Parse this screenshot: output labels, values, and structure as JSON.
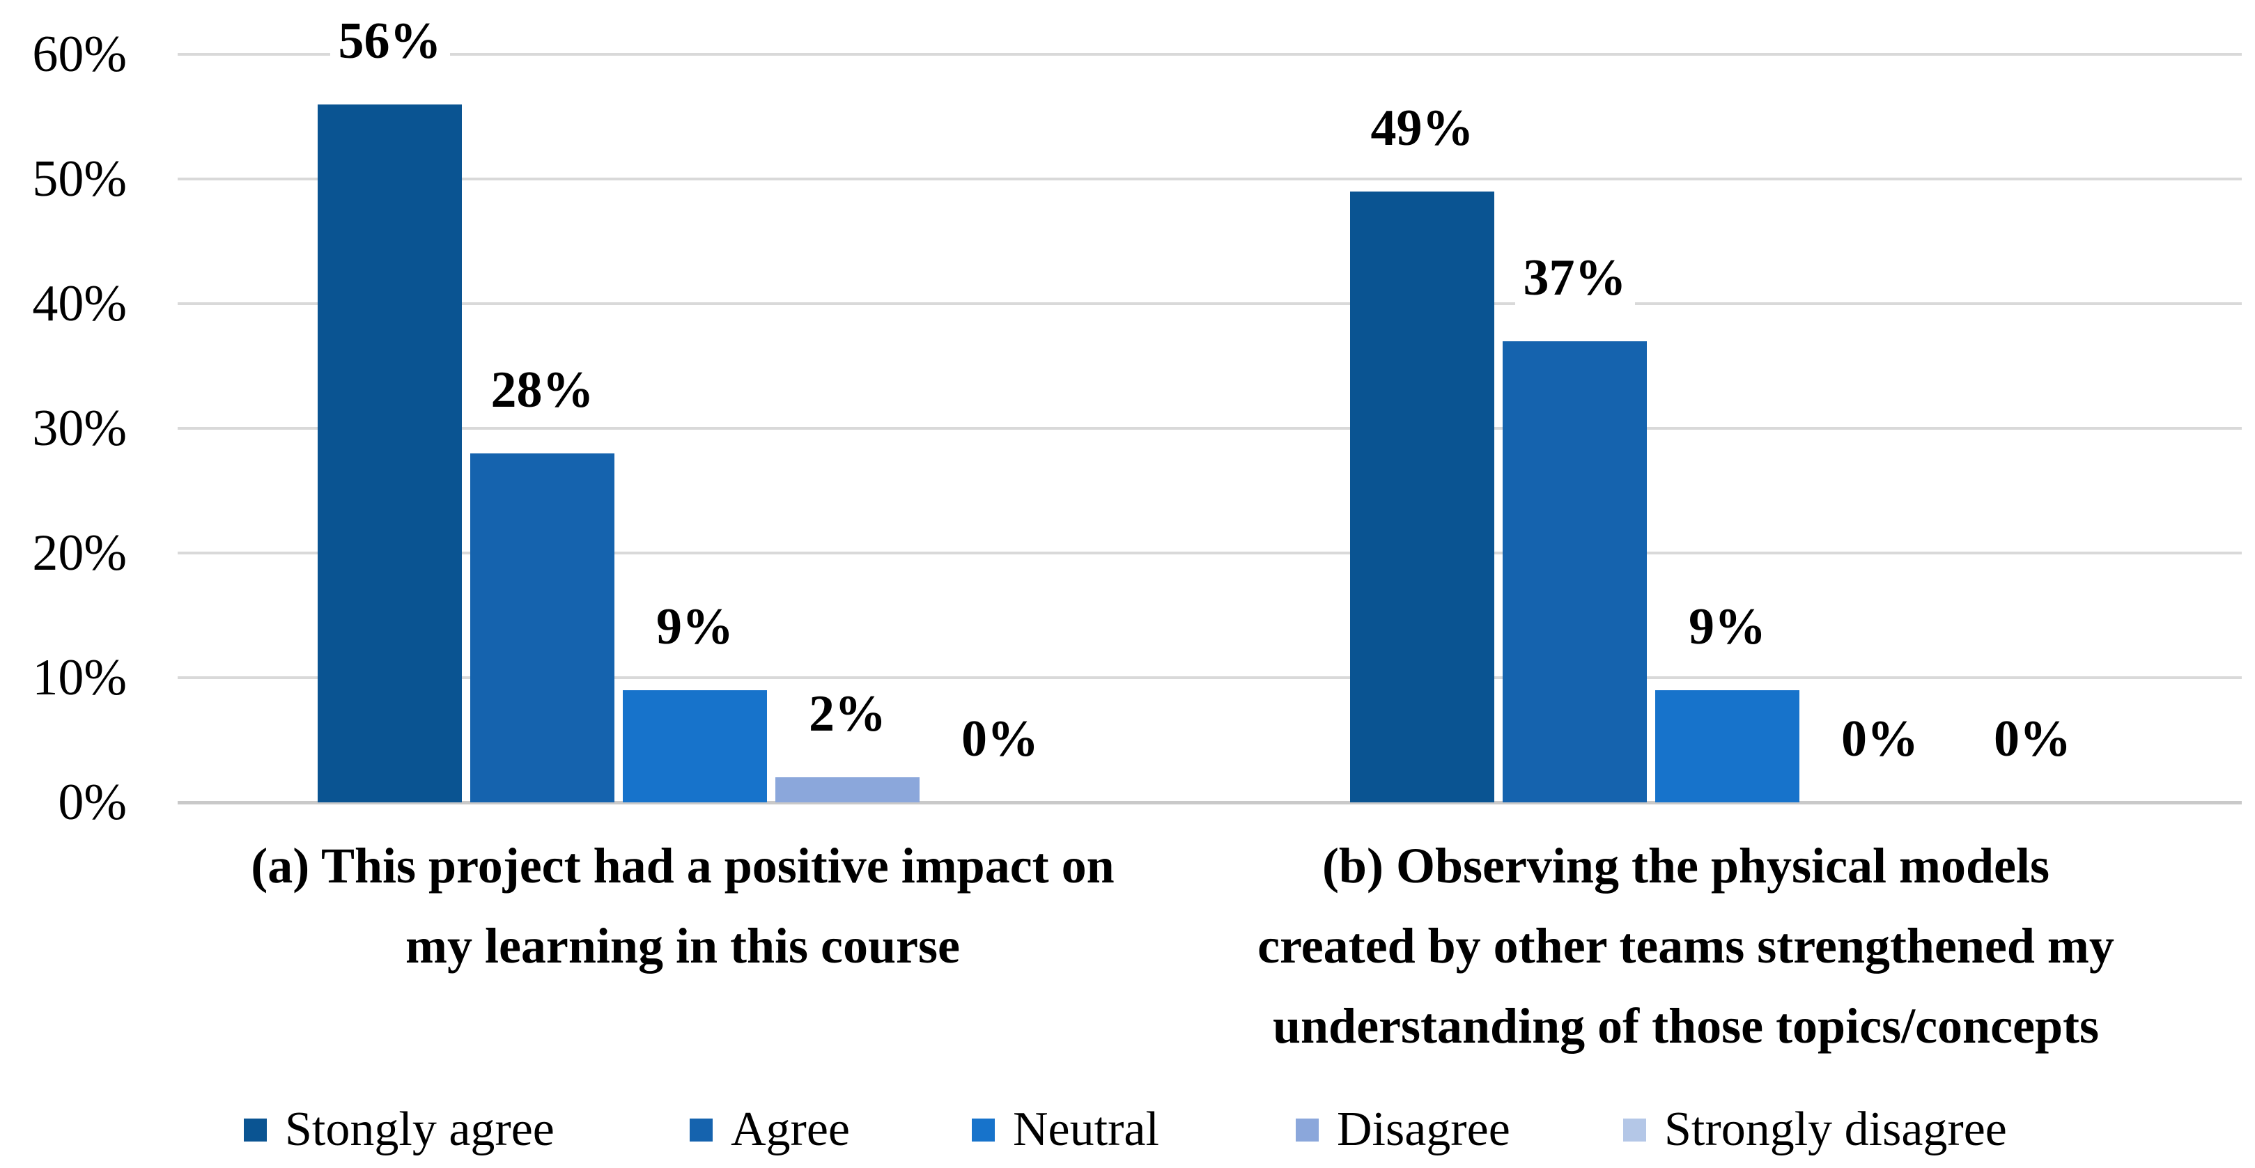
{
  "chart_data": {
    "type": "bar",
    "title": "",
    "y_axis": {
      "min": 0,
      "max": 60,
      "step": 10,
      "format": "percent",
      "ticks": [
        "60%",
        "50%",
        "40%",
        "30%",
        "20%",
        "10%",
        "0%"
      ]
    },
    "grid": true,
    "legend_position": "bottom",
    "legend": [
      {
        "label": "Stongly agree",
        "color": "#0A5492"
      },
      {
        "label": "Agree",
        "color": "#1563AE"
      },
      {
        "label": "Neutral",
        "color": "#1773CB"
      },
      {
        "label": "Disagree",
        "color": "#8BA7DB"
      },
      {
        "label": "Strongly disagree",
        "color": "#B4C7E7"
      }
    ],
    "categories": [
      "Stongly agree",
      "Agree",
      "Neutral",
      "Disagree",
      "Strongly disagree"
    ],
    "groups": [
      {
        "title_lines": [
          "(a) This project had a positive impact on",
          "my learning in this course"
        ],
        "values": [
          56,
          28,
          9,
          2,
          0
        ],
        "value_labels": [
          "56%",
          "28%",
          "9%",
          "2%",
          "0%"
        ]
      },
      {
        "title_lines": [
          "(b) Observing the physical models",
          "created by other teams strengthened my",
          "understanding of those topics/concepts"
        ],
        "values": [
          49,
          37,
          9,
          0,
          0
        ],
        "value_labels": [
          "49%",
          "37%",
          "9%",
          "0%",
          "0%"
        ]
      }
    ]
  },
  "colors": {
    "background": "#FFFFFF",
    "gridline": "#D9D9D9",
    "axis_line": "#C9C9C9",
    "text": "#000000"
  }
}
